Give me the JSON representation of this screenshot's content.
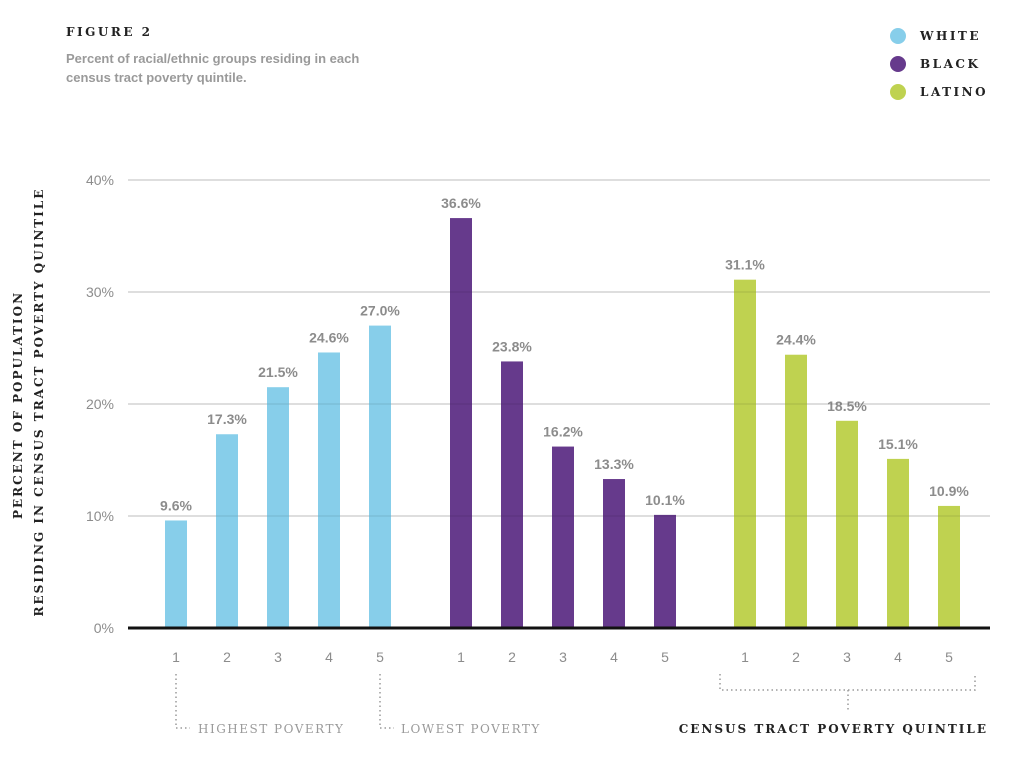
{
  "figure_label": "FIGURE 2",
  "subtitle": "Percent of racial/ethnic groups residing in each census tract poverty quintile.",
  "legend": [
    {
      "label": "WHITE",
      "color": "#87ceea"
    },
    {
      "label": "BLACK",
      "color": "#663a8c"
    },
    {
      "label": "LATINO",
      "color": "#bfd250"
    }
  ],
  "chart_data": {
    "type": "bar",
    "ylabel_lines": [
      "PERCENT OF POPULATION",
      "RESIDING IN CENSUS TRACT POVERTY QUINTILE"
    ],
    "xlabel": "CENSUS TRACT POVERTY QUINTILE",
    "ylim": [
      0,
      40
    ],
    "yticks": [
      0,
      10,
      20,
      30,
      40
    ],
    "ytick_labels": [
      "0%",
      "10%",
      "20%",
      "30%",
      "40%"
    ],
    "grid": true,
    "categories": [
      "1",
      "2",
      "3",
      "4",
      "5"
    ],
    "series": [
      {
        "name": "WHITE",
        "color": "#87ceea",
        "values": [
          9.6,
          17.3,
          21.5,
          24.6,
          27.0
        ],
        "labels": [
          "9.6%",
          "17.3%",
          "21.5%",
          "24.6%",
          "27.0%"
        ]
      },
      {
        "name": "BLACK",
        "color": "#663a8c",
        "values": [
          36.6,
          23.8,
          16.2,
          13.3,
          10.1
        ],
        "labels": [
          "36.6%",
          "23.8%",
          "16.2%",
          "13.3%",
          "10.1%"
        ]
      },
      {
        "name": "LATINO",
        "color": "#bfd250",
        "values": [
          31.1,
          24.4,
          18.5,
          15.1,
          10.9
        ],
        "labels": [
          "31.1%",
          "24.4%",
          "18.5%",
          "15.1%",
          "10.9%"
        ]
      }
    ],
    "annotations": {
      "highest": "HIGHEST POVERTY",
      "lowest": "LOWEST POVERTY"
    }
  }
}
